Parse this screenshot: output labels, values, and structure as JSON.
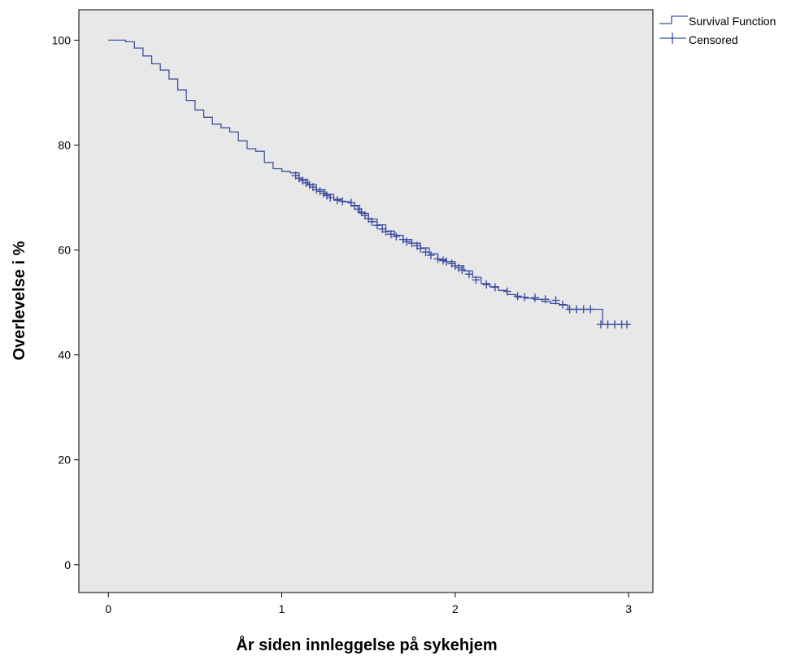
{
  "chart_data": {
    "type": "line",
    "xlabel": "År siden innleggelse på sykehjem",
    "ylabel": "Overlevelse i %",
    "xlim": [
      -0.17,
      3.14
    ],
    "ylim": [
      -5.3,
      105.8
    ],
    "x_ticks": [
      0,
      1,
      2,
      3
    ],
    "y_ticks": [
      0,
      20,
      40,
      60,
      80,
      100
    ],
    "grid": false,
    "legend_position": "top-right",
    "colors": {
      "plot_background": "#e8e8e8",
      "series": "#3f4fa0",
      "axis": "#000000"
    },
    "legend": [
      {
        "label": "Survival Function",
        "marker": "step"
      },
      {
        "label": "Censored",
        "marker": "plus"
      }
    ],
    "series": [
      {
        "name": "Survival Function",
        "style": "step",
        "x": [
          0,
          0.05,
          0.1,
          0.15,
          0.2,
          0.25,
          0.3,
          0.35,
          0.4,
          0.45,
          0.5,
          0.55,
          0.6,
          0.65,
          0.7,
          0.75,
          0.8,
          0.85,
          0.9,
          0.95,
          1.0,
          1.05,
          1.1,
          1.15,
          1.2,
          1.25,
          1.3,
          1.35,
          1.4,
          1.45,
          1.5,
          1.55,
          1.6,
          1.65,
          1.7,
          1.75,
          1.8,
          1.85,
          1.9,
          1.95,
          2.0,
          2.05,
          2.1,
          2.15,
          2.2,
          2.25,
          2.3,
          2.35,
          2.4,
          2.45,
          2.5,
          2.55,
          2.6,
          2.65,
          2.7,
          2.75,
          2.8,
          2.82,
          2.85,
          2.9,
          2.95,
          2.99
        ],
        "y": [
          100,
          100,
          99.7,
          98.5,
          97.0,
          95.5,
          94.3,
          92.6,
          90.5,
          88.5,
          86.7,
          85.3,
          84.0,
          83.3,
          82.5,
          80.8,
          79.3,
          78.8,
          76.7,
          75.5,
          75.0,
          74.7,
          73.5,
          72.5,
          71.5,
          70.6,
          69.7,
          69.2,
          68.5,
          67.0,
          65.9,
          64.8,
          63.6,
          62.8,
          62.0,
          61.3,
          60.4,
          59.3,
          58.2,
          57.8,
          57.0,
          56.0,
          54.8,
          53.6,
          53.0,
          52.3,
          51.5,
          51.0,
          50.8,
          50.6,
          50.2,
          49.8,
          49.5,
          48.7,
          48.7,
          48.7,
          48.7,
          48.7,
          45.8,
          45.8,
          45.8,
          45.8
        ]
      },
      {
        "name": "Censored",
        "style": "plus",
        "x": [
          1.08,
          1.1,
          1.12,
          1.14,
          1.16,
          1.18,
          1.2,
          1.22,
          1.24,
          1.26,
          1.28,
          1.32,
          1.35,
          1.4,
          1.42,
          1.44,
          1.46,
          1.48,
          1.5,
          1.52,
          1.55,
          1.58,
          1.6,
          1.63,
          1.66,
          1.7,
          1.72,
          1.75,
          1.78,
          1.8,
          1.83,
          1.86,
          1.9,
          1.93,
          1.95,
          1.98,
          2.0,
          2.02,
          2.04,
          2.08,
          2.12,
          2.18,
          2.23,
          2.3,
          2.36,
          2.4,
          2.46,
          2.52,
          2.58,
          2.62,
          2.66,
          2.7,
          2.74,
          2.78,
          2.84,
          2.88,
          2.92,
          2.96,
          2.99
        ],
        "y": [
          74.2,
          73.7,
          73.2,
          72.8,
          72.4,
          72.0,
          71.5,
          71.2,
          70.8,
          70.4,
          70.0,
          69.5,
          69.3,
          69.0,
          68.4,
          67.8,
          67.2,
          66.6,
          66.0,
          65.4,
          64.7,
          64.0,
          63.5,
          63.0,
          62.6,
          62.0,
          61.6,
          61.3,
          60.8,
          60.3,
          59.6,
          59.0,
          58.3,
          58.0,
          57.8,
          57.4,
          57.0,
          56.6,
          56.2,
          55.4,
          54.3,
          53.4,
          52.9,
          52.1,
          51.2,
          51.0,
          50.9,
          50.6,
          50.4,
          49.6,
          48.7,
          48.7,
          48.7,
          48.7,
          45.8,
          45.8,
          45.8,
          45.8,
          45.8
        ]
      }
    ]
  }
}
